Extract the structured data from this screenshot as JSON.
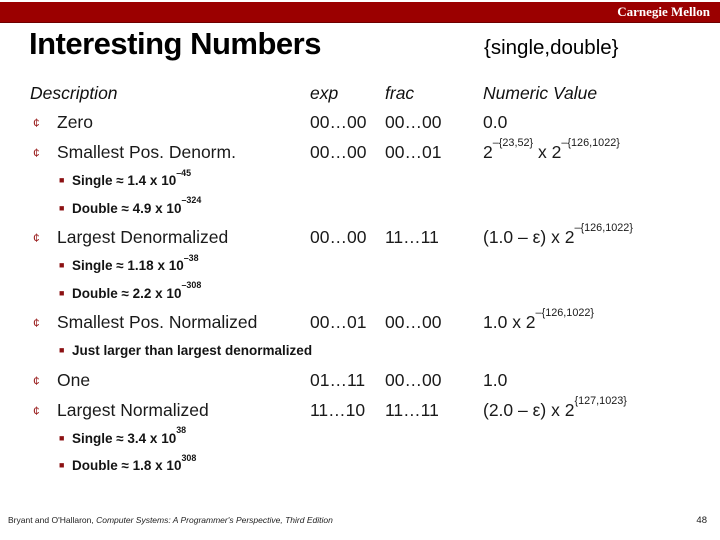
{
  "brand": {
    "name": "Carnegie Mellon",
    "bar_color": "#9b0000"
  },
  "header": {
    "title": "Interesting Numbers",
    "subtitle": "{single,double}"
  },
  "icons": {
    "item_bullet": "¢",
    "sub_bullet": "■"
  },
  "table": {
    "columns": [
      "Description",
      "exp",
      "frac",
      "Numeric Value"
    ],
    "rows": [
      {
        "type": "item",
        "description": "Zero",
        "exp": "00…00",
        "frac": "00…00",
        "value": [
          {
            "t": "0.0"
          }
        ]
      },
      {
        "type": "item",
        "description": "Smallest Pos. Denorm.",
        "exp": "00…00",
        "frac": "00…01",
        "value": [
          {
            "t": "2"
          },
          {
            "sup": "–{23,52}"
          },
          {
            "t": " x 2"
          },
          {
            "sup": "–{126,1022}"
          }
        ]
      },
      {
        "type": "sub",
        "parts": [
          {
            "t": "Single ≈ 1.4 x 10"
          },
          {
            "sup": "–45"
          }
        ]
      },
      {
        "type": "sub",
        "parts": [
          {
            "t": "Double ≈ 4.9 x 10"
          },
          {
            "sup": "–324"
          }
        ]
      },
      {
        "type": "item",
        "description": "Largest Denormalized",
        "exp": "00…00",
        "frac": "11…11",
        "value": [
          {
            "t": "(1.0 – ε) x 2"
          },
          {
            "sup": "–{126,1022}"
          }
        ]
      },
      {
        "type": "sub",
        "parts": [
          {
            "t": "Single ≈ 1.18 x 10"
          },
          {
            "sup": "–38"
          }
        ]
      },
      {
        "type": "sub",
        "parts": [
          {
            "t": "Double ≈ 2.2 x 10"
          },
          {
            "sup": "–308"
          }
        ]
      },
      {
        "type": "item",
        "description": "Smallest Pos. Normalized",
        "exp": "00…01",
        "frac": "00…00",
        "value": [
          {
            "t": "1.0 x 2"
          },
          {
            "sup": "–{126,1022}"
          }
        ]
      },
      {
        "type": "sub",
        "parts": [
          {
            "t": "Just larger than largest denormalized"
          }
        ]
      },
      {
        "type": "item",
        "description": "One",
        "exp": "01…11",
        "frac": "00…00",
        "value": [
          {
            "t": "1.0"
          }
        ]
      },
      {
        "type": "item",
        "description": "Largest Normalized",
        "exp": "11…10",
        "frac": "11…11",
        "value": [
          {
            "t": "(2.0 – ε) x 2"
          },
          {
            "sup": "{127,1023}"
          }
        ]
      },
      {
        "type": "sub",
        "parts": [
          {
            "t": "Single ≈ 3.4 x 10"
          },
          {
            "sup": "38"
          }
        ]
      },
      {
        "type": "sub",
        "parts": [
          {
            "t": "Double ≈ 1.8 x 10"
          },
          {
            "sup": "308"
          }
        ]
      }
    ]
  },
  "footer": {
    "authors": "Bryant and O'Hallaron, ",
    "book": "Computer Systems: A Programmer's Perspective, Third Edition",
    "page_number": "48"
  },
  "colors": {
    "accent_red": "#9b0000",
    "bullet_red": "#8b1012",
    "text": "#1a1a1a"
  }
}
